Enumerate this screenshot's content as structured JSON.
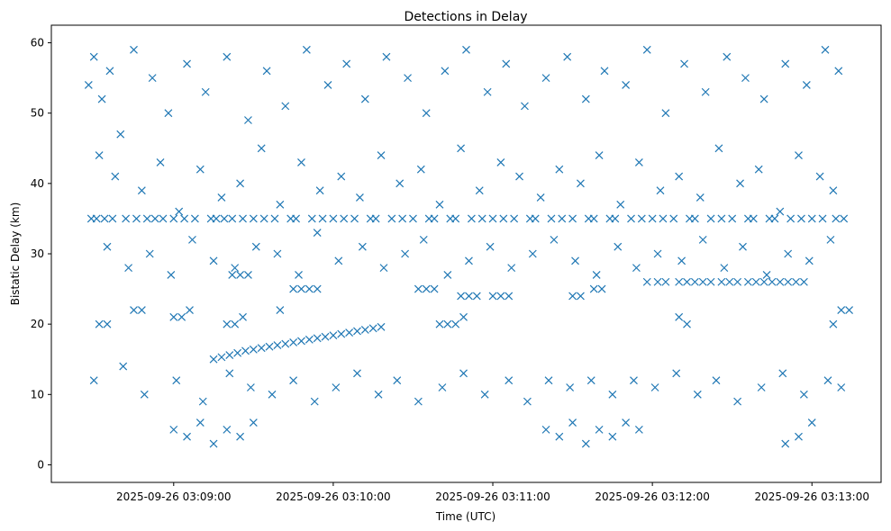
{
  "chart_data": {
    "type": "scatter",
    "title": "Detections in Delay",
    "xlabel": "Time (UTC)",
    "ylabel": "Bistatic Delay (km)",
    "x_is_time": true,
    "xlim": [
      "2025-09-26 03:08:14",
      "2025-09-26 03:13:26"
    ],
    "ylim": [
      -2.5,
      62.5
    ],
    "xticks": [
      "2025-09-26 03:09:00",
      "2025-09-26 03:10:00",
      "2025-09-26 03:11:00",
      "2025-09-26 03:12:00",
      "2025-09-26 03:13:00"
    ],
    "yticks": [
      0,
      10,
      20,
      30,
      40,
      50,
      60
    ],
    "grid": false,
    "legend": "none",
    "marker": "x",
    "color": "#1f77b4",
    "series": [
      {
        "x": [
          "2025-09-26 03:08:28",
          "2025-09-26 03:08:30",
          "2025-09-26 03:08:33",
          "2025-09-26 03:08:36",
          "2025-09-26 03:08:40",
          "2025-09-26 03:08:45",
          "2025-09-26 03:08:52",
          "2025-09-26 03:08:58",
          "2025-09-26 03:09:05",
          "2025-09-26 03:09:12",
          "2025-09-26 03:09:20",
          "2025-09-26 03:09:28",
          "2025-09-26 03:09:35",
          "2025-09-26 03:09:42",
          "2025-09-26 03:09:50",
          "2025-09-26 03:09:58",
          "2025-09-26 03:10:05",
          "2025-09-26 03:10:12",
          "2025-09-26 03:10:20",
          "2025-09-26 03:10:28",
          "2025-09-26 03:10:35",
          "2025-09-26 03:10:42",
          "2025-09-26 03:10:50",
          "2025-09-26 03:10:58",
          "2025-09-26 03:11:05",
          "2025-09-26 03:11:12",
          "2025-09-26 03:11:20",
          "2025-09-26 03:11:28",
          "2025-09-26 03:11:35",
          "2025-09-26 03:11:42",
          "2025-09-26 03:11:50",
          "2025-09-26 03:11:58",
          "2025-09-26 03:12:05",
          "2025-09-26 03:12:12",
          "2025-09-26 03:12:20",
          "2025-09-26 03:12:28",
          "2025-09-26 03:12:35",
          "2025-09-26 03:12:42",
          "2025-09-26 03:12:50",
          "2025-09-26 03:12:58",
          "2025-09-26 03:13:05",
          "2025-09-26 03:13:10",
          "2025-09-26 03:08:32",
          "2025-09-26 03:08:38",
          "2025-09-26 03:08:48",
          "2025-09-26 03:08:55",
          "2025-09-26 03:09:02",
          "2025-09-26 03:09:10",
          "2025-09-26 03:09:18",
          "2025-09-26 03:09:25",
          "2025-09-26 03:09:33",
          "2025-09-26 03:09:40",
          "2025-09-26 03:09:48",
          "2025-09-26 03:09:55",
          "2025-09-26 03:10:03",
          "2025-09-26 03:10:10",
          "2025-09-26 03:10:18",
          "2025-09-26 03:10:25",
          "2025-09-26 03:10:33",
          "2025-09-26 03:10:40",
          "2025-09-26 03:10:48",
          "2025-09-26 03:10:55",
          "2025-09-26 03:11:03",
          "2025-09-26 03:11:10",
          "2025-09-26 03:11:18",
          "2025-09-26 03:11:25",
          "2025-09-26 03:11:33",
          "2025-09-26 03:11:40",
          "2025-09-26 03:11:48",
          "2025-09-26 03:11:55",
          "2025-09-26 03:12:03",
          "2025-09-26 03:12:10",
          "2025-09-26 03:12:18",
          "2025-09-26 03:12:25",
          "2025-09-26 03:12:33",
          "2025-09-26 03:12:40",
          "2025-09-26 03:12:48",
          "2025-09-26 03:12:55",
          "2025-09-26 03:13:03",
          "2025-09-26 03:13:08",
          "2025-09-26 03:08:29",
          "2025-09-26 03:08:31",
          "2025-09-26 03:08:34",
          "2025-09-26 03:08:37",
          "2025-09-26 03:08:42",
          "2025-09-26 03:08:46",
          "2025-09-26 03:08:50",
          "2025-09-26 03:08:53",
          "2025-09-26 03:08:56",
          "2025-09-26 03:09:00",
          "2025-09-26 03:09:04",
          "2025-09-26 03:09:08",
          "2025-09-26 03:09:14",
          "2025-09-26 03:09:16",
          "2025-09-26 03:09:19",
          "2025-09-26 03:09:22",
          "2025-09-26 03:09:26",
          "2025-09-26 03:09:30",
          "2025-09-26 03:09:34",
          "2025-09-26 03:09:38",
          "2025-09-26 03:09:44",
          "2025-09-26 03:09:46",
          "2025-09-26 03:09:52",
          "2025-09-26 03:09:56",
          "2025-09-26 03:10:00",
          "2025-09-26 03:10:04",
          "2025-09-26 03:10:08",
          "2025-09-26 03:10:14",
          "2025-09-26 03:10:16",
          "2025-09-26 03:10:22",
          "2025-09-26 03:10:26",
          "2025-09-26 03:10:30",
          "2025-09-26 03:10:36",
          "2025-09-26 03:10:38",
          "2025-09-26 03:10:44",
          "2025-09-26 03:10:46",
          "2025-09-26 03:10:52",
          "2025-09-26 03:10:56",
          "2025-09-26 03:11:00",
          "2025-09-26 03:11:04",
          "2025-09-26 03:11:08",
          "2025-09-26 03:11:14",
          "2025-09-26 03:11:16",
          "2025-09-26 03:11:22",
          "2025-09-26 03:11:26",
          "2025-09-26 03:11:30",
          "2025-09-26 03:11:36",
          "2025-09-26 03:11:38",
          "2025-09-26 03:11:44",
          "2025-09-26 03:11:46",
          "2025-09-26 03:11:52",
          "2025-09-26 03:11:56",
          "2025-09-26 03:12:00",
          "2025-09-26 03:12:04",
          "2025-09-26 03:12:08",
          "2025-09-26 03:12:14",
          "2025-09-26 03:12:16",
          "2025-09-26 03:12:22",
          "2025-09-26 03:12:26",
          "2025-09-26 03:12:30",
          "2025-09-26 03:12:36",
          "2025-09-26 03:12:38",
          "2025-09-26 03:12:44",
          "2025-09-26 03:12:46",
          "2025-09-26 03:12:52",
          "2025-09-26 03:12:56",
          "2025-09-26 03:13:00",
          "2025-09-26 03:13:04",
          "2025-09-26 03:13:09",
          "2025-09-26 03:13:12",
          "2025-09-26 03:08:35",
          "2025-09-26 03:08:43",
          "2025-09-26 03:08:51",
          "2025-09-26 03:08:59",
          "2025-09-26 03:09:07",
          "2025-09-26 03:09:15",
          "2025-09-26 03:09:23",
          "2025-09-26 03:09:31",
          "2025-09-26 03:09:39",
          "2025-09-26 03:09:47",
          "2025-09-26 03:09:54",
          "2025-09-26 03:10:02",
          "2025-09-26 03:10:11",
          "2025-09-26 03:10:19",
          "2025-09-26 03:10:27",
          "2025-09-26 03:10:34",
          "2025-09-26 03:10:43",
          "2025-09-26 03:10:51",
          "2025-09-26 03:10:59",
          "2025-09-26 03:11:07",
          "2025-09-26 03:11:15",
          "2025-09-26 03:11:23",
          "2025-09-26 03:11:31",
          "2025-09-26 03:11:39",
          "2025-09-26 03:11:47",
          "2025-09-26 03:11:54",
          "2025-09-26 03:12:02",
          "2025-09-26 03:12:11",
          "2025-09-26 03:12:19",
          "2025-09-26 03:12:27",
          "2025-09-26 03:12:34",
          "2025-09-26 03:12:43",
          "2025-09-26 03:12:51",
          "2025-09-26 03:12:59",
          "2025-09-26 03:13:07",
          "2025-09-26 03:08:30",
          "2025-09-26 03:08:41",
          "2025-09-26 03:08:49",
          "2025-09-26 03:09:01",
          "2025-09-26 03:09:11",
          "2025-09-26 03:09:21",
          "2025-09-26 03:09:29",
          "2025-09-26 03:09:37",
          "2025-09-26 03:09:45",
          "2025-09-26 03:09:53",
          "2025-09-26 03:10:01",
          "2025-09-26 03:10:09",
          "2025-09-26 03:10:17",
          "2025-09-26 03:10:24",
          "2025-09-26 03:10:32",
          "2025-09-26 03:10:41",
          "2025-09-26 03:10:49",
          "2025-09-26 03:10:57",
          "2025-09-26 03:11:06",
          "2025-09-26 03:11:13",
          "2025-09-26 03:11:21",
          "2025-09-26 03:11:29",
          "2025-09-26 03:11:37",
          "2025-09-26 03:11:45",
          "2025-09-26 03:11:53",
          "2025-09-26 03:12:01",
          "2025-09-26 03:12:09",
          "2025-09-26 03:12:17",
          "2025-09-26 03:12:24",
          "2025-09-26 03:12:32",
          "2025-09-26 03:12:41",
          "2025-09-26 03:12:49",
          "2025-09-26 03:12:57",
          "2025-09-26 03:13:06",
          "2025-09-26 03:13:11",
          "2025-09-26 03:09:15",
          "2025-09-26 03:09:18",
          "2025-09-26 03:09:21",
          "2025-09-26 03:09:24",
          "2025-09-26 03:09:27",
          "2025-09-26 03:09:30",
          "2025-09-26 03:09:33",
          "2025-09-26 03:09:36",
          "2025-09-26 03:09:39",
          "2025-09-26 03:09:42",
          "2025-09-26 03:09:45",
          "2025-09-26 03:09:48",
          "2025-09-26 03:09:51",
          "2025-09-26 03:09:54",
          "2025-09-26 03:09:57",
          "2025-09-26 03:10:00",
          "2025-09-26 03:10:03",
          "2025-09-26 03:10:06",
          "2025-09-26 03:10:09",
          "2025-09-26 03:10:12",
          "2025-09-26 03:10:15",
          "2025-09-26 03:10:18",
          "2025-09-26 03:09:22",
          "2025-09-26 03:09:25",
          "2025-09-26 03:09:28",
          "2025-09-26 03:09:45",
          "2025-09-26 03:09:48",
          "2025-09-26 03:09:51",
          "2025-09-26 03:09:54",
          "2025-09-26 03:10:32",
          "2025-09-26 03:10:35",
          "2025-09-26 03:10:38",
          "2025-09-26 03:10:48",
          "2025-09-26 03:10:51",
          "2025-09-26 03:10:54",
          "2025-09-26 03:11:00",
          "2025-09-26 03:11:03",
          "2025-09-26 03:11:06",
          "2025-09-26 03:11:30",
          "2025-09-26 03:11:33",
          "2025-09-26 03:11:38",
          "2025-09-26 03:11:41",
          "2025-09-26 03:11:58",
          "2025-09-26 03:12:02",
          "2025-09-26 03:12:05",
          "2025-09-26 03:12:10",
          "2025-09-26 03:12:13",
          "2025-09-26 03:12:16",
          "2025-09-26 03:12:19",
          "2025-09-26 03:12:22",
          "2025-09-26 03:12:26",
          "2025-09-26 03:12:29",
          "2025-09-26 03:12:32",
          "2025-09-26 03:12:36",
          "2025-09-26 03:12:39",
          "2025-09-26 03:12:42",
          "2025-09-26 03:12:45",
          "2025-09-26 03:12:48",
          "2025-09-26 03:12:51",
          "2025-09-26 03:12:54",
          "2025-09-26 03:12:57",
          "2025-09-26 03:08:32",
          "2025-09-26 03:08:35",
          "2025-09-26 03:08:45",
          "2025-09-26 03:08:48",
          "2025-09-26 03:09:00",
          "2025-09-26 03:09:03",
          "2025-09-26 03:09:06",
          "2025-09-26 03:09:20",
          "2025-09-26 03:09:23",
          "2025-09-26 03:09:26",
          "2025-09-26 03:09:40",
          "2025-09-26 03:10:40",
          "2025-09-26 03:10:43",
          "2025-09-26 03:10:46",
          "2025-09-26 03:10:49",
          "2025-09-26 03:12:10",
          "2025-09-26 03:12:13",
          "2025-09-26 03:13:08",
          "2025-09-26 03:13:11",
          "2025-09-26 03:13:14",
          "2025-09-26 03:09:00",
          "2025-09-26 03:09:05",
          "2025-09-26 03:09:10",
          "2025-09-26 03:09:15",
          "2025-09-26 03:09:20",
          "2025-09-26 03:09:25",
          "2025-09-26 03:09:30",
          "2025-09-26 03:11:20",
          "2025-09-26 03:11:25",
          "2025-09-26 03:11:30",
          "2025-09-26 03:11:35",
          "2025-09-26 03:11:40",
          "2025-09-26 03:11:45",
          "2025-09-26 03:11:50",
          "2025-09-26 03:11:55",
          "2025-09-26 03:12:50",
          "2025-09-26 03:12:55",
          "2025-09-26 03:13:00"
        ],
        "y": [
          54,
          58,
          52,
          56,
          47,
          59,
          55,
          50,
          57,
          53,
          58,
          49,
          56,
          51,
          59,
          54,
          57,
          52,
          58,
          55,
          50,
          56,
          59,
          53,
          57,
          51,
          55,
          58,
          52,
          56,
          54,
          59,
          50,
          57,
          53,
          58,
          55,
          52,
          57,
          54,
          59,
          56,
          44,
          41,
          39,
          43,
          36,
          42,
          38,
          40,
          45,
          37,
          43,
          39,
          41,
          38,
          44,
          40,
          42,
          37,
          45,
          39,
          43,
          41,
          38,
          42,
          40,
          44,
          37,
          43,
          39,
          41,
          38,
          45,
          40,
          42,
          36,
          44,
          41,
          39,
          35,
          35,
          35,
          35,
          35,
          35,
          35,
          35,
          35,
          35,
          35,
          35,
          35,
          35,
          35,
          35,
          35,
          35,
          35,
          35,
          35,
          35,
          35,
          35,
          35,
          35,
          35,
          35,
          35,
          35,
          35,
          35,
          35,
          35,
          35,
          35,
          35,
          35,
          35,
          35,
          35,
          35,
          35,
          35,
          35,
          35,
          35,
          35,
          35,
          35,
          35,
          35,
          35,
          35,
          35,
          35,
          35,
          35,
          35,
          35,
          35,
          35,
          35,
          35,
          35,
          35,
          35,
          35,
          35,
          35,
          31,
          28,
          30,
          27,
          32,
          29,
          28,
          31,
          30,
          27,
          33,
          29,
          31,
          28,
          30,
          32,
          27,
          29,
          31,
          28,
          30,
          32,
          29,
          27,
          31,
          28,
          30,
          29,
          32,
          28,
          31,
          27,
          30,
          29,
          32,
          12,
          14,
          10,
          12,
          9,
          13,
          11,
          10,
          12,
          9,
          11,
          13,
          10,
          12,
          9,
          11,
          13,
          10,
          12,
          9,
          12,
          11,
          12,
          10,
          12,
          11,
          13,
          10,
          12,
          9,
          11,
          13,
          10,
          12,
          11,
          15,
          15.3,
          15.6,
          15.9,
          16.2,
          16.4,
          16.6,
          16.8,
          17,
          17.2,
          17.4,
          17.6,
          17.8,
          18,
          18.2,
          18.4,
          18.6,
          18.8,
          19,
          19.2,
          19.4,
          19.6,
          27,
          27,
          27,
          25,
          25,
          25,
          25,
          25,
          25,
          25,
          24,
          24,
          24,
          24,
          24,
          24,
          24,
          24,
          25,
          25,
          26,
          26,
          26,
          26,
          26,
          26,
          26,
          26,
          26,
          26,
          26,
          26,
          26,
          26,
          26,
          26,
          26,
          26,
          26,
          20,
          20,
          22,
          22,
          21,
          21,
          22,
          20,
          20,
          21,
          22,
          20,
          20,
          20,
          21,
          21,
          20,
          20,
          22,
          22,
          5,
          4,
          6,
          3,
          5,
          4,
          6,
          5,
          4,
          6,
          3,
          5,
          4,
          6,
          5,
          3,
          4,
          6
        ]
      }
    ]
  }
}
